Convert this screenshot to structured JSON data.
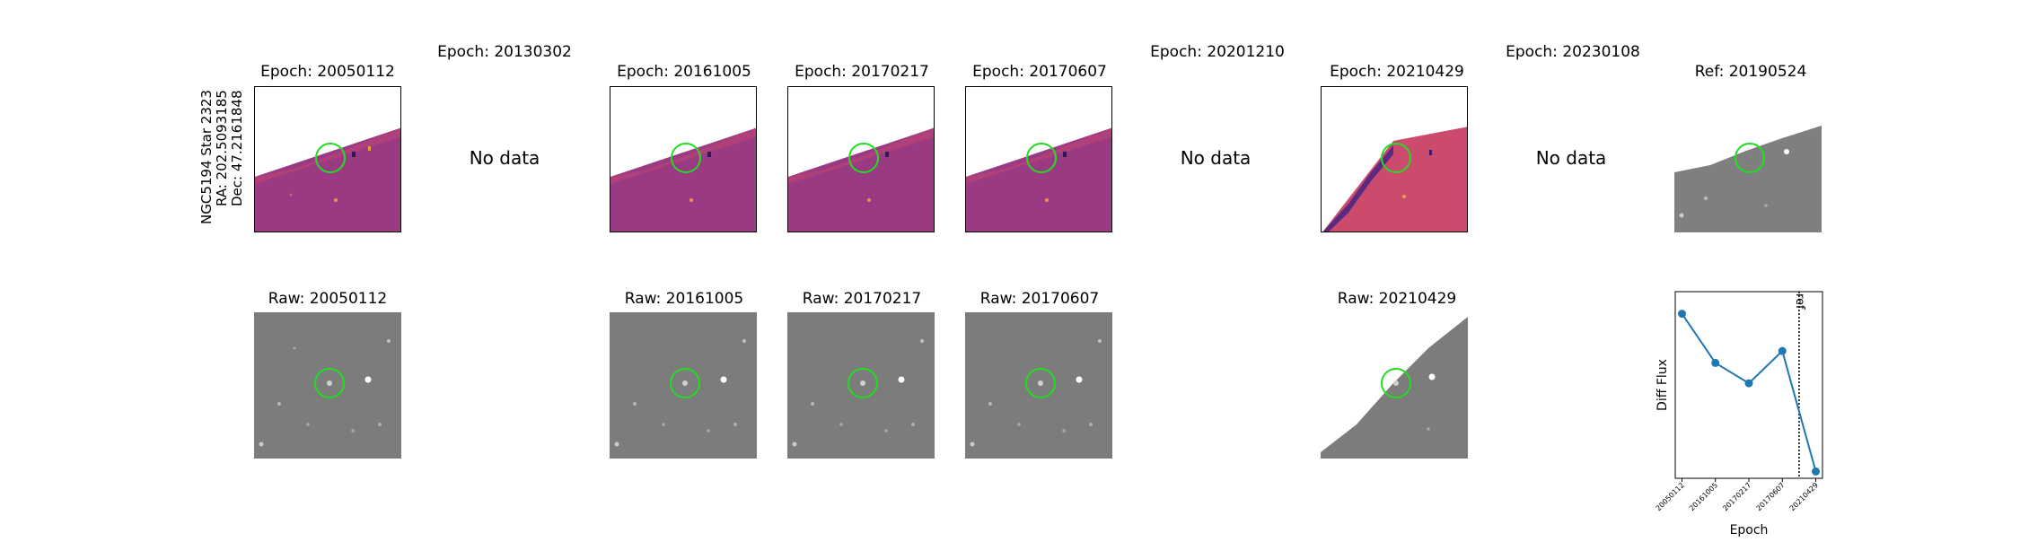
{
  "star_label": {
    "line1": "NGC5194 Star 2323",
    "line2": "RA: 202.5093185",
    "line3": "Dec: 47.2161848"
  },
  "top_row": [
    {
      "title": "Epoch: 20050112",
      "has_data": true
    },
    {
      "title": "Epoch: 20130302",
      "has_data": false,
      "no_data_text": "No data"
    },
    {
      "title": "Epoch: 20161005",
      "has_data": true
    },
    {
      "title": "Epoch: 20170217",
      "has_data": true
    },
    {
      "title": "Epoch: 20170607",
      "has_data": true
    },
    {
      "title": "Epoch: 20201210",
      "has_data": false,
      "no_data_text": "No data"
    },
    {
      "title": "Epoch: 20210429",
      "has_data": true
    },
    {
      "title": "Epoch: 20230108",
      "has_data": false,
      "no_data_text": "No data"
    },
    {
      "title": "Ref: 20190524",
      "has_data": true
    }
  ],
  "bottom_row": [
    {
      "title": "Raw: 20050112"
    },
    {
      "title": "Raw: 20161005"
    },
    {
      "title": "Raw: 20170217"
    },
    {
      "title": "Raw: 20170607"
    },
    {
      "title": "Raw: 20210429"
    }
  ],
  "colors": {
    "diff_image": "#9c3a80",
    "raw_image": "#808080",
    "circle": "#22dd22",
    "series": "#1f77b4"
  },
  "chart_data": {
    "type": "line",
    "title": "",
    "xlabel": "Epoch",
    "ylabel": "Diff Flux",
    "x": [
      "20050112",
      "20161005",
      "20170217",
      "20170607",
      "20210429"
    ],
    "values": [
      0.87,
      0.58,
      0.46,
      0.65,
      -0.06
    ],
    "ylim": [
      -0.1,
      1.0
    ],
    "ref_line_label": "ref",
    "ref_line_position": 3.5,
    "grid": false
  }
}
